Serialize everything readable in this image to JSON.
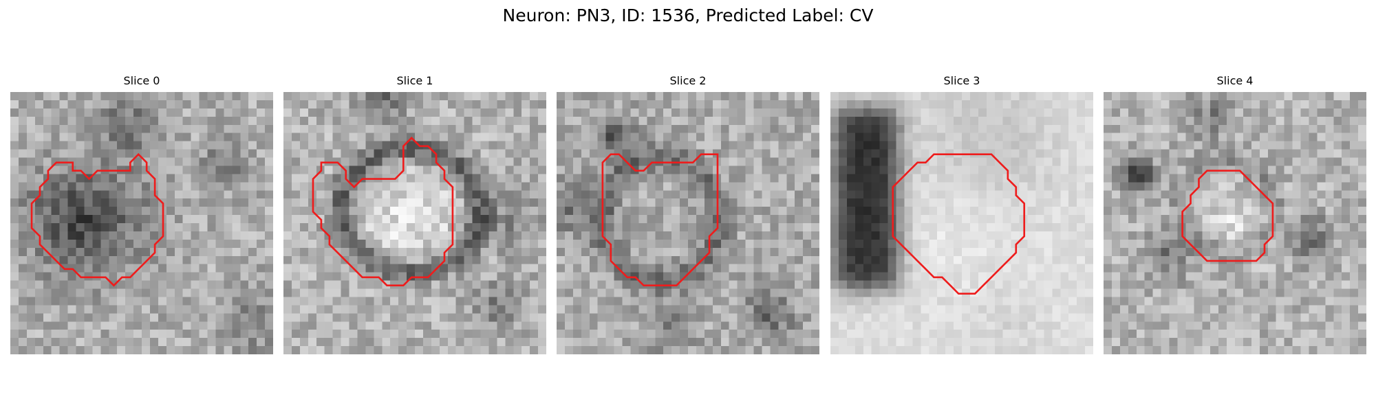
{
  "figure": {
    "title": "Neuron: PN3, ID: 1536, Predicted Label: CV"
  },
  "colors": {
    "background": "#ffffff",
    "contour": "#ee1c1c"
  },
  "slices": [
    {
      "label": "Slice 0",
      "contour": [
        [
          7.6,
          8.6
        ],
        [
          7.6,
          9.6
        ],
        [
          8.6,
          9.6
        ],
        [
          9.6,
          10.6
        ],
        [
          10.6,
          9.6
        ],
        [
          13.6,
          9.6
        ],
        [
          14.6,
          9.6
        ],
        [
          14.6,
          8.6
        ],
        [
          15.6,
          7.6
        ],
        [
          16.6,
          8.6
        ],
        [
          16.6,
          9.6
        ],
        [
          17.6,
          10.6
        ],
        [
          17.6,
          12.6
        ],
        [
          18.6,
          13.6
        ],
        [
          18.6,
          17.6
        ],
        [
          17.6,
          18.6
        ],
        [
          17.6,
          19.6
        ],
        [
          16.6,
          20.6
        ],
        [
          15.6,
          21.6
        ],
        [
          14.6,
          22.6
        ],
        [
          13.6,
          22.6
        ],
        [
          12.6,
          23.6
        ],
        [
          11.6,
          22.6
        ],
        [
          8.6,
          22.6
        ],
        [
          7.6,
          21.6
        ],
        [
          6.6,
          21.6
        ],
        [
          5.6,
          20.6
        ],
        [
          4.6,
          19.6
        ],
        [
          3.6,
          18.6
        ],
        [
          3.6,
          17.6
        ],
        [
          2.6,
          16.6
        ],
        [
          2.6,
          15.6
        ],
        [
          2.6,
          14.6
        ],
        [
          2.6,
          13.6
        ],
        [
          3.6,
          12.6
        ],
        [
          3.6,
          11.6
        ],
        [
          4.6,
          10.6
        ],
        [
          4.6,
          9.6
        ],
        [
          5.6,
          8.6
        ]
      ]
    },
    {
      "label": "Slice 1",
      "contour": [
        [
          4.6,
          8.6
        ],
        [
          6.6,
          8.6
        ],
        [
          7.6,
          9.6
        ],
        [
          7.6,
          10.6
        ],
        [
          8.6,
          11.6
        ],
        [
          9.6,
          10.6
        ],
        [
          12.6,
          10.6
        ],
        [
          13.6,
          10.6
        ],
        [
          14.6,
          9.6
        ],
        [
          14.6,
          6.6
        ],
        [
          15.6,
          5.6
        ],
        [
          16.6,
          6.6
        ],
        [
          17.6,
          6.6
        ],
        [
          18.6,
          7.6
        ],
        [
          18.6,
          8.6
        ],
        [
          19.6,
          9.6
        ],
        [
          19.6,
          10.6
        ],
        [
          20.6,
          11.6
        ],
        [
          20.6,
          16.6
        ],
        [
          20.6,
          18.6
        ],
        [
          19.6,
          19.6
        ],
        [
          19.6,
          20.6
        ],
        [
          18.6,
          21.6
        ],
        [
          17.6,
          22.6
        ],
        [
          16.6,
          22.6
        ],
        [
          15.6,
          22.6
        ],
        [
          14.6,
          23.6
        ],
        [
          13.6,
          23.6
        ],
        [
          12.6,
          23.6
        ],
        [
          11.6,
          22.6
        ],
        [
          10.6,
          22.6
        ],
        [
          9.6,
          22.6
        ],
        [
          8.6,
          21.6
        ],
        [
          7.6,
          20.6
        ],
        [
          6.6,
          19.6
        ],
        [
          5.6,
          18.6
        ],
        [
          5.6,
          17.6
        ],
        [
          4.6,
          16.6
        ],
        [
          4.6,
          15.6
        ],
        [
          3.6,
          14.6
        ],
        [
          3.6,
          12.6
        ],
        [
          3.6,
          11.6
        ],
        [
          3.6,
          10.6
        ],
        [
          4.6,
          9.6
        ]
      ]
    },
    {
      "label": "Slice 2",
      "contour": [
        [
          7.6,
          7.6
        ],
        [
          8.6,
          8.6
        ],
        [
          9.6,
          9.6
        ],
        [
          10.6,
          9.6
        ],
        [
          11.6,
          8.6
        ],
        [
          12.6,
          8.6
        ],
        [
          16.6,
          8.6
        ],
        [
          17.6,
          7.6
        ],
        [
          18.6,
          7.6
        ],
        [
          19.6,
          7.6
        ],
        [
          19.6,
          8.6
        ],
        [
          19.6,
          12.6
        ],
        [
          19.6,
          16.6
        ],
        [
          18.6,
          17.6
        ],
        [
          18.6,
          19.6
        ],
        [
          17.6,
          20.6
        ],
        [
          16.6,
          21.6
        ],
        [
          15.6,
          22.6
        ],
        [
          14.6,
          23.6
        ],
        [
          13.6,
          23.6
        ],
        [
          12.6,
          23.6
        ],
        [
          11.6,
          23.6
        ],
        [
          10.6,
          23.6
        ],
        [
          9.6,
          22.6
        ],
        [
          8.6,
          22.6
        ],
        [
          7.6,
          21.6
        ],
        [
          6.6,
          20.6
        ],
        [
          6.6,
          19.6
        ],
        [
          6.6,
          18.6
        ],
        [
          5.6,
          17.6
        ],
        [
          5.6,
          16.6
        ],
        [
          5.6,
          8.6
        ],
        [
          6.6,
          7.6
        ]
      ]
    },
    {
      "label": "Slice 3",
      "contour": [
        [
          8.6,
          10.6
        ],
        [
          9.6,
          9.6
        ],
        [
          10.6,
          8.6
        ],
        [
          11.6,
          8.6
        ],
        [
          12.6,
          7.6
        ],
        [
          19.6,
          7.6
        ],
        [
          20.6,
          8.6
        ],
        [
          21.6,
          9.6
        ],
        [
          21.6,
          10.6
        ],
        [
          22.6,
          11.6
        ],
        [
          22.6,
          12.6
        ],
        [
          23.6,
          13.6
        ],
        [
          23.6,
          16.6
        ],
        [
          23.6,
          17.6
        ],
        [
          22.6,
          18.6
        ],
        [
          22.6,
          19.6
        ],
        [
          21.6,
          20.6
        ],
        [
          20.6,
          21.6
        ],
        [
          19.6,
          22.6
        ],
        [
          18.6,
          23.6
        ],
        [
          17.6,
          24.6
        ],
        [
          16.6,
          24.6
        ],
        [
          15.6,
          24.6
        ],
        [
          14.6,
          23.6
        ],
        [
          13.6,
          22.6
        ],
        [
          12.6,
          22.6
        ],
        [
          11.6,
          21.6
        ],
        [
          10.6,
          20.6
        ],
        [
          9.6,
          19.6
        ],
        [
          8.6,
          18.6
        ],
        [
          7.6,
          17.6
        ],
        [
          7.6,
          11.6
        ]
      ]
    },
    {
      "label": "Slice 4",
      "contour": [
        [
          12.6,
          9.6
        ],
        [
          16.6,
          9.6
        ],
        [
          17.6,
          10.6
        ],
        [
          18.6,
          11.6
        ],
        [
          19.6,
          12.6
        ],
        [
          20.6,
          13.6
        ],
        [
          20.6,
          16.6
        ],
        [
          20.6,
          17.6
        ],
        [
          19.6,
          18.6
        ],
        [
          19.6,
          19.6
        ],
        [
          18.6,
          20.6
        ],
        [
          16.6,
          20.6
        ],
        [
          12.6,
          20.6
        ],
        [
          11.6,
          19.6
        ],
        [
          10.6,
          18.6
        ],
        [
          9.6,
          17.6
        ],
        [
          9.6,
          16.6
        ],
        [
          9.6,
          14.6
        ],
        [
          10.6,
          13.6
        ],
        [
          10.6,
          12.6
        ],
        [
          11.6,
          11.6
        ],
        [
          11.6,
          10.6
        ]
      ]
    }
  ]
}
